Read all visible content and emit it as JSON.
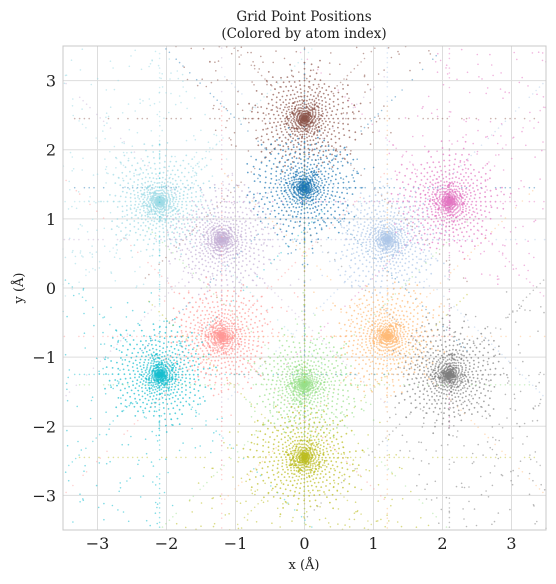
{
  "chart_data": {
    "type": "scatter",
    "title": "Grid Point Positions",
    "subtitle": "(Colored by atom index)",
    "xlabel": "x (Å)",
    "ylabel": "y (Å)",
    "xlim": [
      -3.5,
      3.5
    ],
    "ylim": [
      -3.5,
      3.5
    ],
    "xticks": [
      "−3",
      "−2",
      "−1",
      "0",
      "1",
      "2",
      "3"
    ],
    "yticks": [
      "−3",
      "−2",
      "−1",
      "0",
      "1",
      "2",
      "3"
    ],
    "grid": true,
    "atoms": [
      {
        "index": 0,
        "x": 0.0,
        "y": 2.45,
        "color": "#8c564b"
      },
      {
        "index": 1,
        "x": 0.0,
        "y": 1.45,
        "color": "#1f77b4"
      },
      {
        "index": 2,
        "x": -2.1,
        "y": 1.25,
        "color": "#9edae5"
      },
      {
        "index": 3,
        "x": 2.1,
        "y": 1.25,
        "color": "#e377c2"
      },
      {
        "index": 4,
        "x": -1.2,
        "y": 0.7,
        "color": "#c5b0d5"
      },
      {
        "index": 5,
        "x": 1.2,
        "y": 0.7,
        "color": "#aec7e8"
      },
      {
        "index": 6,
        "x": -1.2,
        "y": -0.7,
        "color": "#ff9896"
      },
      {
        "index": 7,
        "x": 1.2,
        "y": -0.7,
        "color": "#ffbb78"
      },
      {
        "index": 8,
        "x": -2.1,
        "y": -1.25,
        "color": "#17becf"
      },
      {
        "index": 9,
        "x": 2.1,
        "y": -1.25,
        "color": "#7f7f7f"
      },
      {
        "index": 10,
        "x": 0.0,
        "y": -1.4,
        "color": "#98df8a"
      },
      {
        "index": 11,
        "x": 0.0,
        "y": -2.45,
        "color": "#bcbd22"
      }
    ]
  }
}
